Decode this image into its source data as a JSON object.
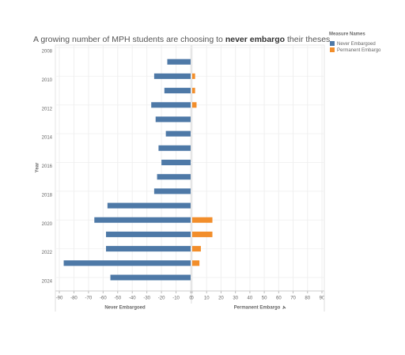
{
  "chart_data": {
    "type": "diverging-bar",
    "title": [
      "A growing number of MPH students are choosing to ",
      "never embargo",
      " their theses"
    ],
    "y_label": "Year",
    "legend_title": "Measure Names",
    "categories": [
      "2008",
      null,
      "2010",
      null,
      "2012",
      null,
      "2014",
      null,
      "2016",
      null,
      "2018",
      null,
      "2020",
      null,
      "2022",
      null,
      "2024"
    ],
    "series": [
      {
        "name": "Never Embargoed",
        "color": "#4e79a7",
        "axis": "left",
        "values": [
          null,
          -16,
          -25,
          -18,
          -27,
          -24,
          -17,
          -22,
          -20,
          -23,
          -25,
          -57,
          -66,
          -58,
          -58,
          -87,
          -55
        ]
      },
      {
        "name": "Permanent Embargo",
        "color": "#f28e2b",
        "axis": "right",
        "values": [
          null,
          null,
          2,
          2,
          3,
          null,
          null,
          null,
          null,
          null,
          null,
          null,
          14,
          14,
          6,
          5,
          null
        ]
      }
    ],
    "left_axis": {
      "label": "Never Embargoed",
      "xlim": [
        -90,
        0
      ],
      "xticks": [
        -90,
        -80,
        -70,
        -60,
        -50,
        -40,
        -30,
        -20,
        -10,
        0
      ]
    },
    "right_axis": {
      "label": "Permanent Embargo",
      "xlim": [
        0,
        90
      ],
      "xticks": [
        0,
        10,
        20,
        30,
        40,
        50,
        60,
        70,
        80,
        90
      ]
    },
    "grid": true
  }
}
